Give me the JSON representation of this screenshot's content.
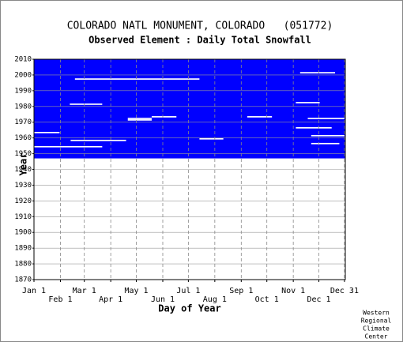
{
  "chart_data": {
    "type": "availability",
    "title": "COLORADO NATL MONUMENT, COLORADO   (051772)",
    "subtitle": "Observed Element : Daily Total Snowfall",
    "xlabel": "Day of Year",
    "ylabel": "Year",
    "credit": [
      "Western",
      "Regional",
      "Climate",
      "Center"
    ],
    "color": "#0000ff",
    "gap_color": "#ffffff",
    "grid": true,
    "xlim": [
      1,
      366
    ],
    "xticks": [
      {
        "value": 1,
        "label": "Jan 1"
      },
      {
        "value": 32,
        "label": "Feb 1"
      },
      {
        "value": 60,
        "label": "Mar 1"
      },
      {
        "value": 91,
        "label": "Apr 1"
      },
      {
        "value": 121,
        "label": "May 1"
      },
      {
        "value": 152,
        "label": "Jun 1"
      },
      {
        "value": 182,
        "label": "Jul 1"
      },
      {
        "value": 213,
        "label": "Aug 1"
      },
      {
        "value": 244,
        "label": "Sep 1"
      },
      {
        "value": 274,
        "label": "Oct 1"
      },
      {
        "value": 305,
        "label": "Nov 1"
      },
      {
        "value": 335,
        "label": "Dec 1"
      },
      {
        "value": 365,
        "label": "Dec 31"
      }
    ],
    "ylim": [
      1870,
      2010
    ],
    "yticks": [
      1870,
      1880,
      1890,
      1900,
      1910,
      1920,
      1930,
      1940,
      1950,
      1960,
      1970,
      1980,
      1990,
      2000,
      2010
    ],
    "coverage": {
      "years": [
        1947,
        2010
      ],
      "days": [
        1,
        366
      ]
    },
    "gaps": [
      {
        "year": 1997,
        "days": [
          49,
          195
        ]
      },
      {
        "year": 1981,
        "days": [
          43,
          81
        ]
      },
      {
        "year": 1971,
        "days": [
          111,
          139
        ]
      },
      {
        "year": 1972,
        "days": [
          111,
          139
        ]
      },
      {
        "year": 1973,
        "days": [
          139,
          168
        ]
      },
      {
        "year": 1973,
        "days": [
          251,
          280
        ]
      },
      {
        "year": 1959,
        "days": [
          195,
          223
        ]
      },
      {
        "year": 1958,
        "days": [
          44,
          109
        ]
      },
      {
        "year": 1954,
        "days": [
          1,
          81
        ]
      },
      {
        "year": 1963,
        "days": [
          1,
          31
        ]
      },
      {
        "year": 1982,
        "days": [
          308,
          336
        ]
      },
      {
        "year": 1972,
        "days": [
          322,
          365
        ]
      },
      {
        "year": 1961,
        "days": [
          326,
          365
        ]
      },
      {
        "year": 1956,
        "days": [
          326,
          359
        ]
      },
      {
        "year": 2001,
        "days": [
          313,
          354
        ]
      },
      {
        "year": 1966,
        "days": [
          308,
          350
        ]
      }
    ]
  }
}
